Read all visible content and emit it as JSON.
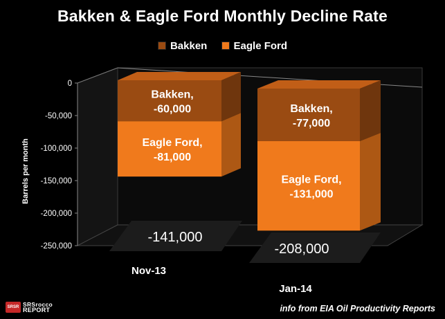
{
  "chart_data": {
    "type": "bar",
    "stacked": true,
    "three_d": true,
    "title": "Bakken & Eagle Ford Monthly Decline Rate",
    "ylabel": "Barrels per month",
    "xlabel": "",
    "ylim": [
      -250000,
      0
    ],
    "yticks": [
      "0",
      "-50,000",
      "-100,000",
      "-150,000",
      "-200,000",
      "-250,000"
    ],
    "ytick_values": [
      0,
      -50000,
      -100000,
      -150000,
      -200000,
      -250000
    ],
    "categories": [
      "Nov-13",
      "Jan-14"
    ],
    "series": [
      {
        "name": "Bakken",
        "color": "#9a4b12",
        "values": [
          -60000,
          -77000
        ],
        "labels": [
          [
            "Bakken,",
            "-60,000"
          ],
          [
            "Bakken,",
            "-77,000"
          ]
        ]
      },
      {
        "name": "Eagle Ford",
        "color": "#f07a1c",
        "values": [
          -81000,
          -131000
        ],
        "labels": [
          [
            "Eagle Ford,",
            "-81,000"
          ],
          [
            "Eagle Ford,",
            "-131,000"
          ]
        ]
      }
    ],
    "totals": [
      "-141,000",
      "-208,000"
    ],
    "legend_position": "top-center",
    "grid": false
  },
  "footer": {
    "source": "info from EIA Oil Productivity Reports"
  },
  "logo": {
    "top": "SRSrocco",
    "bottom": "REPORT",
    "mark": "SRSR"
  }
}
